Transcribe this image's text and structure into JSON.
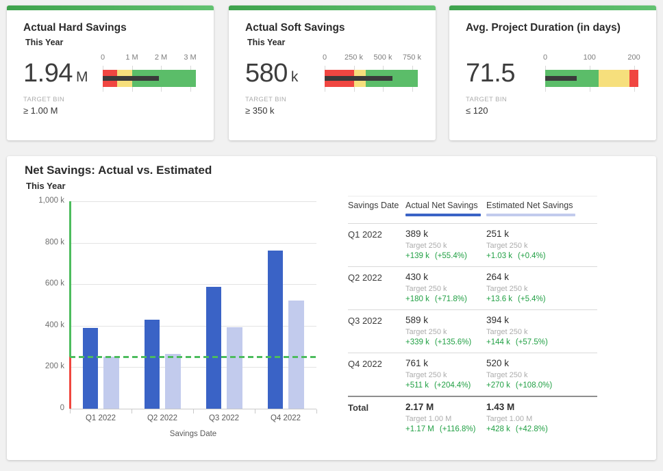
{
  "colors": {
    "page_bg": "#F1F1F1",
    "card_bg": "#FFFFFF",
    "accent_strip_left": "#3EA24C",
    "accent_strip_right": "#62C271",
    "good_green": "#5BBD69",
    "warn_yellow": "#F6DF7C",
    "bad_red": "#F04641",
    "measure_black": "#3A3A3A",
    "actual_blue": "#3A63C6",
    "estimated_lavender": "#C2CBED",
    "target_dash_green": "#4CBC5D",
    "axis_below_target_red": "#F0473F",
    "variance_green": "#21A044"
  },
  "chart_data": [
    {
      "type": "bullet",
      "title": "Actual Hard Savings",
      "subtitle": "This Year",
      "value": 1940000,
      "value_label": "1.94",
      "unit": "M",
      "target_bin_label": "TARGET BIN",
      "target_bin": "≥ 1.00 M",
      "xlim": [
        0,
        3200000
      ],
      "ticks": [
        {
          "label": "0",
          "value": 0
        },
        {
          "label": "1 M",
          "value": 1000000
        },
        {
          "label": "2 M",
          "value": 2000000
        },
        {
          "label": "3 M",
          "value": 3000000
        }
      ],
      "bands": [
        {
          "color": "#F04641",
          "from": 0,
          "to": 500000
        },
        {
          "color": "#F6DF7C",
          "from": 500000,
          "to": 1000000
        },
        {
          "color": "#5BBD69",
          "from": 1000000,
          "to": 3200000
        }
      ]
    },
    {
      "type": "bullet",
      "title": "Actual Soft Savings",
      "subtitle": "This Year",
      "value": 580000,
      "value_label": "580",
      "unit": "k",
      "target_bin_label": "TARGET BIN",
      "target_bin": "≥ 350 k",
      "xlim": [
        0,
        800000
      ],
      "ticks": [
        {
          "label": "0",
          "value": 0
        },
        {
          "label": "250 k",
          "value": 250000
        },
        {
          "label": "500 k",
          "value": 500000
        },
        {
          "label": "750 k",
          "value": 750000
        }
      ],
      "bands": [
        {
          "color": "#F04641",
          "from": 0,
          "to": 250000
        },
        {
          "color": "#F6DF7C",
          "from": 250000,
          "to": 350000
        },
        {
          "color": "#5BBD69",
          "from": 350000,
          "to": 800000
        }
      ]
    },
    {
      "type": "bullet",
      "title": "Avg. Project Duration (in days)",
      "value": 71.5,
      "value_label": "71.5",
      "target_bin_label": "TARGET BIN",
      "target_bin": "≤ 120",
      "xlim": [
        0,
        210
      ],
      "ticks": [
        {
          "label": "0",
          "value": 0
        },
        {
          "label": "100",
          "value": 100
        },
        {
          "label": "200",
          "value": 200
        }
      ],
      "bands": [
        {
          "color": "#5BBD69",
          "from": 0,
          "to": 120
        },
        {
          "color": "#F6DF7C",
          "from": 120,
          "to": 190
        },
        {
          "color": "#F04641",
          "from": 190,
          "to": 210
        }
      ]
    },
    {
      "type": "bar",
      "title": "Net Savings: Actual vs. Estimated",
      "subtitle": "This Year",
      "xlabel": "Savings Date",
      "categories": [
        "Q1 2022",
        "Q2 2022",
        "Q3 2022",
        "Q4 2022"
      ],
      "series": [
        {
          "name": "Actual Net Savings",
          "color": "#3A63C6",
          "values": [
            389000,
            430000,
            589000,
            761000
          ]
        },
        {
          "name": "Estimated Net Savings",
          "color": "#C2CBED",
          "values": [
            251000,
            264000,
            394000,
            520000
          ]
        }
      ],
      "target_line": 250000,
      "ylim": [
        0,
        1000000
      ],
      "yticks": [
        {
          "label": "0",
          "value": 0
        },
        {
          "label": "200 k",
          "value": 200000
        },
        {
          "label": "400 k",
          "value": 400000
        },
        {
          "label": "600 k",
          "value": 600000
        },
        {
          "label": "800 k",
          "value": 800000
        },
        {
          "label": "1,000 k",
          "value": 1000000
        }
      ],
      "grid": true,
      "legend": "column headers of adjacent table"
    },
    {
      "type": "table",
      "columns": [
        "Savings Date",
        "Actual Net Savings",
        "Estimated Net Savings"
      ],
      "rows": [
        {
          "label": "Q1 2022",
          "cells": [
            {
              "value": "389 k",
              "target": "Target 250 k",
              "variance": "+139 k",
              "variance_pct": "(+55.4%)"
            },
            {
              "value": "251 k",
              "target": "Target 250 k",
              "variance": "+1.03 k",
              "variance_pct": "(+0.4%)"
            }
          ]
        },
        {
          "label": "Q2 2022",
          "cells": [
            {
              "value": "430 k",
              "target": "Target 250 k",
              "variance": "+180 k",
              "variance_pct": "(+71.8%)"
            },
            {
              "value": "264 k",
              "target": "Target 250 k",
              "variance": "+13.6 k",
              "variance_pct": "(+5.4%)"
            }
          ]
        },
        {
          "label": "Q3 2022",
          "cells": [
            {
              "value": "589 k",
              "target": "Target 250 k",
              "variance": "+339 k",
              "variance_pct": "(+135.6%)"
            },
            {
              "value": "394 k",
              "target": "Target 250 k",
              "variance": "+144 k",
              "variance_pct": "(+57.5%)"
            }
          ]
        },
        {
          "label": "Q4 2022",
          "cells": [
            {
              "value": "761 k",
              "target": "Target 250 k",
              "variance": "+511 k",
              "variance_pct": "(+204.4%)"
            },
            {
              "value": "520 k",
              "target": "Target 250 k",
              "variance": "+270 k",
              "variance_pct": "(+108.0%)"
            }
          ]
        },
        {
          "label": "Total",
          "is_total": true,
          "cells": [
            {
              "value": "2.17 M",
              "target": "Target 1.00 M",
              "variance": "+1.17 M",
              "variance_pct": "(+116.8%)"
            },
            {
              "value": "1.43 M",
              "target": "Target 1.00 M",
              "variance": "+428 k",
              "variance_pct": "(+42.8%)"
            }
          ]
        }
      ]
    }
  ]
}
